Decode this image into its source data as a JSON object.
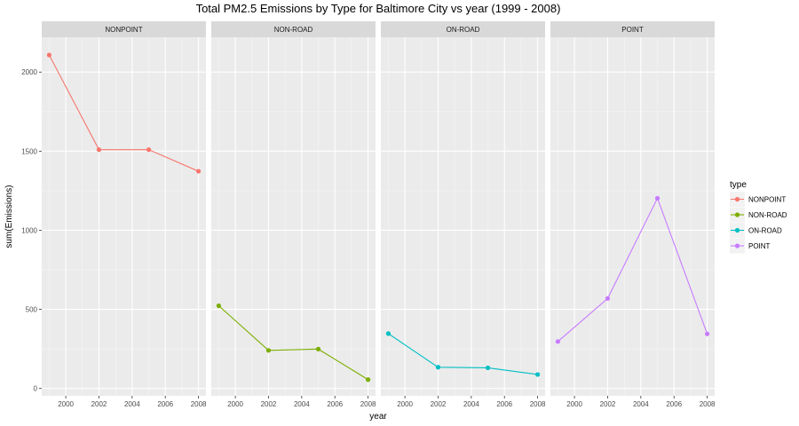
{
  "chart_data": {
    "type": "line",
    "title": "Total PM2.5 Emissions by Type for Baltimore City vs year (1999 - 2008)",
    "xlabel": "year",
    "ylabel": "sum(Emissions)",
    "x": [
      1999,
      2002,
      2005,
      2008
    ],
    "x_ticks": [
      2000,
      2002,
      2004,
      2006,
      2008
    ],
    "y_ticks": [
      0,
      500,
      1000,
      1500,
      2000
    ],
    "xlim": [
      1998.55,
      2008.45
    ],
    "ylim": [
      -46.5,
      2220
    ],
    "grid": true,
    "legend": {
      "title": "type",
      "placement": "right"
    },
    "series": [
      {
        "name": "NONPOINT",
        "color": "#F8766D",
        "values": [
          2107.6,
          1509.5,
          1509.5,
          1373.2
        ]
      },
      {
        "name": "NON-ROAD",
        "color": "#7CAE00",
        "values": [
          522.9,
          240.8,
          248.9,
          55.8
        ]
      },
      {
        "name": "ON-ROAD",
        "color": "#00BFC4",
        "values": [
          346.8,
          134.3,
          130.4,
          88.3
        ]
      },
      {
        "name": "POINT",
        "color": "#C77CFF",
        "values": [
          296.8,
          569.3,
          1202.5,
          344.98
        ]
      }
    ]
  }
}
